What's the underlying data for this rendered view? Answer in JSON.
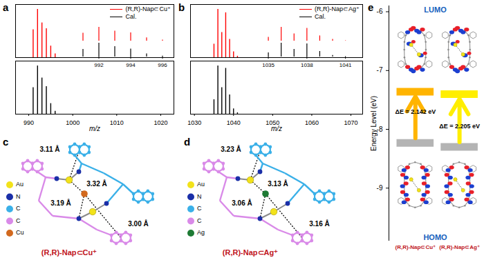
{
  "chart_data": [
    {
      "panel": "a",
      "type": "stem",
      "xlabel": "m/z",
      "xlim": [
        987,
        1023
      ],
      "xticks": [
        990,
        1000,
        1010,
        1020
      ],
      "ylim": [
        0,
        110
      ],
      "tick_labels": "x",
      "legend": "top-right",
      "x": [
        991,
        992,
        993,
        994,
        995,
        996
      ],
      "series": [
        {
          "name": "(R,R)-Nap⊂Cu⁺",
          "color": "#ff0000",
          "values": [
            58,
            100,
            72,
            60,
            24,
            8
          ]
        },
        {
          "name": "Cal.",
          "color": "#000000",
          "values": [
            55,
            100,
            75,
            57,
            22,
            6
          ]
        }
      ],
      "inset": {
        "xlim": [
          990.5,
          996.5
        ],
        "xticks": [
          992,
          994,
          996
        ]
      }
    },
    {
      "panel": "b",
      "type": "stem",
      "xlabel": "m/z",
      "xlim": [
        1029,
        1073
      ],
      "xticks": [
        1030,
        1040,
        1050,
        1060,
        1070
      ],
      "ylim": [
        0,
        110
      ],
      "tick_labels": "x",
      "legend": "top-right",
      "x": [
        1035,
        1036,
        1037,
        1038,
        1039,
        1040,
        1041
      ],
      "series": [
        {
          "name": "(R,R)-Nap⊂Ag⁺",
          "color": "#ff0000",
          "values": [
            28,
            100,
            52,
            93,
            38,
            12,
            3
          ]
        },
        {
          "name": "Cal.",
          "color": "#000000",
          "values": [
            30,
            100,
            55,
            95,
            40,
            11,
            3
          ]
        }
      ],
      "inset": {
        "xlim": [
          1034,
          1041.8
        ],
        "xticks": [
          1035,
          1038,
          1041
        ]
      }
    },
    {
      "panel": "e",
      "type": "energy_level",
      "ylabel": "Energy Level (eV)",
      "ylim": [
        -9.9,
        -5.9
      ],
      "yticks": [
        -9,
        -8,
        -7,
        -6
      ],
      "categories": [
        "(R,R)-Nap⊂Cu⁺",
        "(R,R)-Nap⊂Ag⁺"
      ],
      "series": [
        {
          "name": "LUMO",
          "colors": [
            "#ffb400",
            "#ffee00"
          ],
          "values": [
            -7.36,
            -7.4
          ]
        },
        {
          "name": "HOMO",
          "color": "#b4b4b4",
          "values": [
            -8.23,
            -8.3
          ]
        }
      ],
      "annotations": [
        "ΔE = 2.142 eV",
        "ΔE = 2.205 eV"
      ]
    }
  ],
  "diagrams": [
    {
      "panel": "c",
      "title": "(R,R)-Nap⊂Cu⁺",
      "distances": [
        "3.11 Å",
        "3.32 Å",
        "3.19 Å",
        "3.00 Å"
      ],
      "legend": [
        {
          "label": "Au",
          "color": "#f2e21a"
        },
        {
          "label": "N",
          "color": "#1a2fa8"
        },
        {
          "label": "C",
          "color": "#3ab0e8"
        },
        {
          "label": "C",
          "color": "#d98ae8"
        },
        {
          "label": "Cu",
          "color": "#d2691e"
        }
      ]
    },
    {
      "panel": "d",
      "title": "(R,R)-Nap⊂Ag⁺",
      "distances": [
        "3.23 Å",
        "3.13 Å",
        "3.06 Å",
        "3.16 Å"
      ],
      "legend": [
        {
          "label": "Au",
          "color": "#f2e21a"
        },
        {
          "label": "N",
          "color": "#1a2fa8"
        },
        {
          "label": "C",
          "color": "#3ab0e8"
        },
        {
          "label": "C",
          "color": "#d98ae8"
        },
        {
          "label": "Ag",
          "color": "#1e7a34"
        }
      ]
    }
  ]
}
